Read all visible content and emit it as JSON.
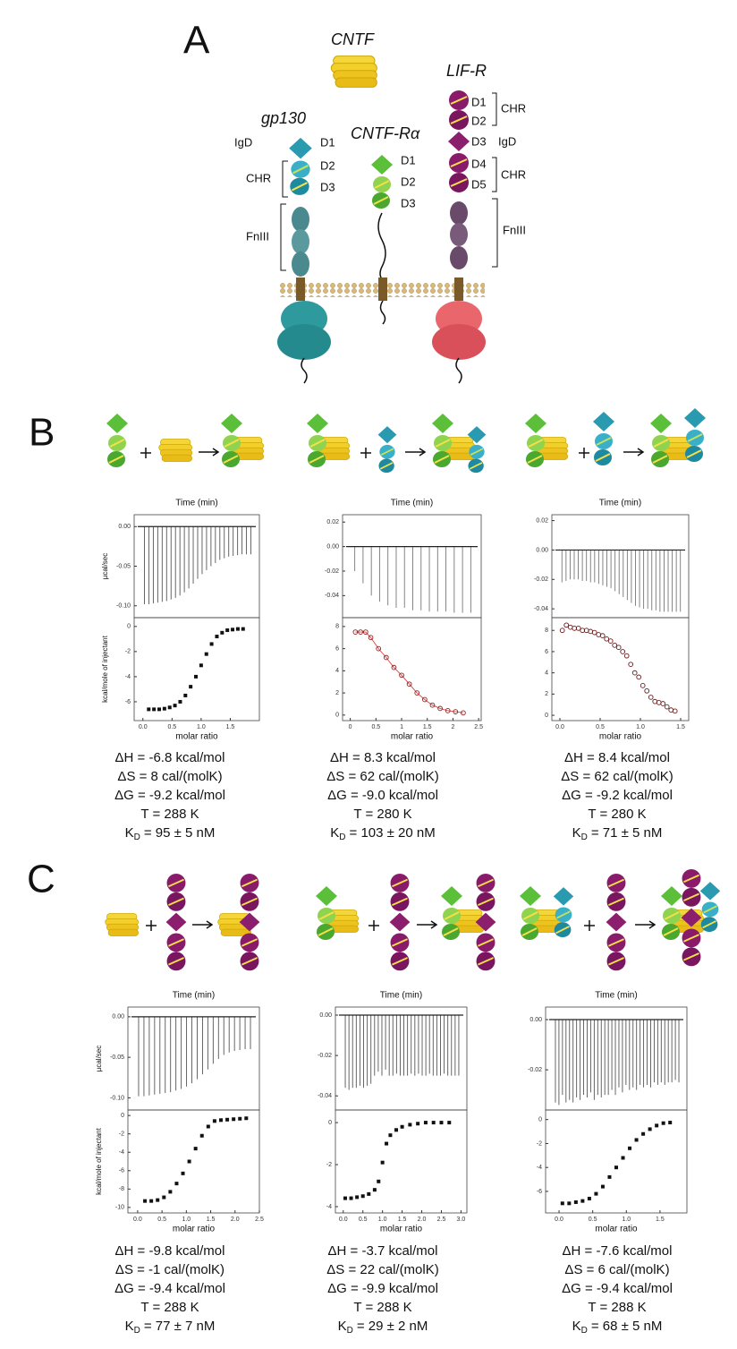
{
  "panel_a": {
    "label": "A",
    "cntf": "CNTF",
    "gp130": {
      "name": "gp130",
      "igd": "IgD",
      "d1": "D1",
      "d2": "D2",
      "d3": "D3",
      "chr": "CHR",
      "fn3": "FnIII"
    },
    "ralpha": {
      "name": "CNTF-Rα",
      "d1": "D1",
      "d2": "D2",
      "d3": "D3"
    },
    "lifr": {
      "name": "LIF-R",
      "d1": "D1",
      "d2": "D2",
      "chr1": "CHR",
      "d3": "D3",
      "igd": "IgD",
      "d4": "D4",
      "d5": "D5",
      "chr2": "CHR",
      "fn3": "FnIII"
    }
  },
  "panel_b": {
    "label": "B",
    "experiments": [
      {
        "raw": {
          "type": "spike",
          "title": "Time (min)",
          "ylabel": "µcal/sec",
          "color": "#555555",
          "ylim": [
            -0.115,
            0.015
          ],
          "yticks": [
            {
              "value": 0,
              "label": "0.00"
            },
            -0.05,
            {
              "value": -0.1,
              "label": "-0.10"
            }
          ],
          "values": [
            -0.098,
            -0.098,
            -0.097,
            -0.096,
            -0.095,
            -0.094,
            -0.092,
            -0.09,
            -0.087,
            -0.083,
            -0.078,
            -0.072,
            -0.066,
            -0.06,
            -0.055,
            -0.05,
            -0.046,
            -0.042,
            -0.04,
            -0.038,
            -0.037,
            -0.036,
            -0.035,
            -0.035,
            -0.035
          ]
        },
        "isotherm": {
          "type": "scatter",
          "xlabel": "molar ratio",
          "ylabel": "kcal/mole of injectant",
          "marker": "square",
          "color": "#111111",
          "xlim": [
            -0.15,
            2.0
          ],
          "xticks": [
            {
              "value": 0,
              "label": "0.0"
            },
            0.5,
            {
              "value": 1,
              "label": "1.0"
            },
            1.5
          ],
          "ylim": [
            -7.5,
            0.7
          ],
          "yticks": [
            0,
            -2,
            -4,
            -6
          ],
          "x": [
            0.1,
            0.19,
            0.28,
            0.37,
            0.46,
            0.55,
            0.64,
            0.73,
            0.82,
            0.91,
            1.0,
            1.09,
            1.18,
            1.27,
            1.36,
            1.45,
            1.54,
            1.63,
            1.72
          ],
          "values": [
            -6.6,
            -6.6,
            -6.6,
            -6.55,
            -6.45,
            -6.3,
            -6.0,
            -5.5,
            -4.8,
            -4.0,
            -3.1,
            -2.2,
            -1.4,
            -0.8,
            -0.5,
            -0.3,
            -0.25,
            -0.2,
            -0.2
          ]
        },
        "params": [
          "ΔH = -6.8 kcal/mol",
          "ΔS = 8 cal/(molK)",
          "ΔG = -9.2 kcal/mol",
          "T   = 288 K"
        ],
        "kd": {
          "symbol": "K",
          "subscript": "D",
          "value": "= 95 ± 5 nM"
        }
      },
      {
        "raw": {
          "type": "spike",
          "title": "Time (min)",
          "color": "#777777",
          "ylim": [
            -0.058,
            0.026
          ],
          "yticks": [
            0.02,
            {
              "value": 0,
              "label": "0.00"
            },
            -0.02,
            -0.04
          ],
          "values": [
            -0.02,
            -0.03,
            -0.04,
            -0.045,
            -0.048,
            -0.05,
            -0.05,
            -0.052,
            -0.052,
            -0.053,
            -0.053,
            -0.053,
            -0.054,
            -0.054,
            -0.054
          ]
        },
        "isotherm": {
          "type": "scatter",
          "xlabel": "molar ratio",
          "marker": "circle",
          "color": "#8a2020",
          "line": "#e04040",
          "xlim": [
            -0.15,
            2.55
          ],
          "xticks": [
            0,
            0.5,
            1,
            1.5,
            2,
            2.5
          ],
          "ylim": [
            -0.5,
            8.8
          ],
          "yticks": [
            0,
            2,
            4,
            6,
            8
          ],
          "x": [
            0.1,
            0.2,
            0.3,
            0.4,
            0.55,
            0.7,
            0.85,
            1.0,
            1.15,
            1.3,
            1.45,
            1.6,
            1.75,
            1.9,
            2.05,
            2.2
          ],
          "values": [
            7.5,
            7.5,
            7.5,
            7.0,
            6.0,
            5.2,
            4.3,
            3.6,
            2.8,
            2.0,
            1.4,
            0.9,
            0.6,
            0.4,
            0.3,
            0.2
          ]
        },
        "params": [
          "ΔH = 8.3 kcal/mol",
          "ΔS = 62 cal/(molK)",
          "ΔG = -9.0 kcal/mol",
          "T = 280 K"
        ],
        "kd": {
          "symbol": "K",
          "subscript": "D",
          "value": "= 103 ± 20 nM"
        }
      },
      {
        "raw": {
          "type": "spike",
          "title": "Time (min)",
          "color": "#777777",
          "ylim": [
            -0.046,
            0.024
          ],
          "yticks": [
            0.02,
            {
              "value": 0,
              "label": "0.00"
            },
            -0.02,
            -0.04
          ],
          "values": [
            -0.022,
            -0.021,
            -0.02,
            -0.02,
            -0.02,
            -0.021,
            -0.021,
            -0.022,
            -0.022,
            -0.023,
            -0.024,
            -0.025,
            -0.026,
            -0.028,
            -0.03,
            -0.032,
            -0.034,
            -0.036,
            -0.038,
            -0.039,
            -0.04,
            -0.04,
            -0.041,
            -0.041,
            -0.042,
            -0.042,
            -0.042,
            -0.042,
            -0.042,
            -0.042
          ]
        },
        "isotherm": {
          "type": "scatter",
          "xlabel": "molar ratio",
          "marker": "circle",
          "color": "#6a1a1a",
          "xlim": [
            -0.1,
            1.6
          ],
          "xticks": [
            {
              "value": 0,
              "label": "0.0"
            },
            0.5,
            {
              "value": 1,
              "label": "1.0"
            },
            1.5
          ],
          "ylim": [
            -0.5,
            9.2
          ],
          "yticks": [
            0,
            2,
            4,
            6,
            8
          ],
          "x": [
            0.03,
            0.08,
            0.13,
            0.18,
            0.23,
            0.28,
            0.33,
            0.38,
            0.43,
            0.48,
            0.53,
            0.58,
            0.63,
            0.68,
            0.73,
            0.78,
            0.83,
            0.88,
            0.93,
            0.98,
            1.03,
            1.08,
            1.13,
            1.18,
            1.23,
            1.28,
            1.33,
            1.38,
            1.43
          ],
          "values": [
            8.0,
            8.5,
            8.3,
            8.2,
            8.2,
            8.0,
            8.0,
            7.9,
            7.8,
            7.6,
            7.5,
            7.2,
            7.0,
            6.6,
            6.4,
            6.0,
            5.6,
            4.8,
            4.0,
            3.6,
            2.8,
            2.3,
            1.7,
            1.3,
            1.2,
            1.1,
            0.8,
            0.5,
            0.4
          ]
        },
        "params": [
          "ΔH = 8.4 kcal/mol",
          "ΔS = 62 cal/(molK)",
          "ΔG = -9.2 kcal/mol",
          "T   = 280 K"
        ],
        "kd": {
          "symbol": "K",
          "subscript": "D",
          "value": "= 71 ± 5 nM"
        }
      }
    ]
  },
  "panel_c": {
    "label": "C",
    "experiments": [
      {
        "raw": {
          "type": "spike",
          "title": "Time (min)",
          "ylabel": "µcal/sec",
          "color": "#555555",
          "ylim": [
            -0.115,
            0.012
          ],
          "yticks": [
            {
              "value": 0,
              "label": "0.00"
            },
            -0.05,
            {
              "value": -0.1,
              "label": "-0.10"
            }
          ],
          "values": [
            -0.098,
            -0.098,
            -0.097,
            -0.096,
            -0.095,
            -0.094,
            -0.093,
            -0.091,
            -0.089,
            -0.086,
            -0.082,
            -0.077,
            -0.071,
            -0.065,
            -0.058,
            -0.052,
            -0.047,
            -0.044,
            -0.042,
            -0.041,
            -0.04,
            -0.04
          ]
        },
        "isotherm": {
          "type": "scatter",
          "xlabel": "molar ratio",
          "ylabel": "kcal/mole of injectant",
          "marker": "square",
          "color": "#111111",
          "xlim": [
            -0.2,
            2.5
          ],
          "xticks": [
            {
              "value": 0,
              "label": "0.0"
            },
            0.5,
            {
              "value": 1,
              "label": "1.0"
            },
            1.5,
            {
              "value": 2,
              "label": "2.0"
            },
            2.5
          ],
          "ylim": [
            -10.6,
            0.6
          ],
          "yticks": [
            0,
            -2,
            -4,
            -6,
            -8,
            -10
          ],
          "x": [
            0.15,
            0.28,
            0.41,
            0.54,
            0.67,
            0.8,
            0.93,
            1.06,
            1.19,
            1.32,
            1.45,
            1.58,
            1.71,
            1.84,
            1.97,
            2.1,
            2.23
          ],
          "values": [
            -9.3,
            -9.3,
            -9.2,
            -8.9,
            -8.3,
            -7.4,
            -6.3,
            -5.0,
            -3.6,
            -2.2,
            -1.2,
            -0.6,
            -0.5,
            -0.45,
            -0.4,
            -0.35,
            -0.3
          ]
        },
        "params": [
          "ΔH = -9.8 kcal/mol",
          "ΔS = -1 cal/(molK)",
          "ΔG = -9.4 kcal/mol",
          "T   = 288 K"
        ],
        "kd": {
          "symbol": "K",
          "subscript": "D",
          "value": "= 77 ± 7 nM"
        }
      },
      {
        "raw": {
          "type": "spike",
          "title": "Time (min)",
          "color": "#555555",
          "ylim": [
            -0.047,
            0.004
          ],
          "yticks": [
            {
              "value": 0,
              "label": "0.00"
            },
            -0.02,
            -0.04
          ],
          "values": [
            -0.036,
            -0.037,
            -0.036,
            -0.036,
            -0.035,
            -0.036,
            -0.035,
            -0.034,
            -0.03,
            -0.028,
            -0.03,
            -0.027,
            -0.03,
            -0.03,
            -0.029,
            -0.03,
            -0.03,
            -0.03,
            -0.029,
            -0.03,
            -0.029,
            -0.03,
            -0.03,
            -0.029,
            -0.03,
            -0.03,
            -0.03,
            -0.029,
            -0.03,
            -0.03,
            -0.03,
            -0.03
          ]
        },
        "isotherm": {
          "type": "scatter",
          "xlabel": "molar ratio",
          "marker": "square",
          "color": "#111111",
          "xlim": [
            -0.2,
            3.15
          ],
          "xticks": [
            {
              "value": 0,
              "label": "0.0"
            },
            0.5,
            {
              "value": 1,
              "label": "1.0"
            },
            1.5,
            {
              "value": 2,
              "label": "2.0"
            },
            2.5,
            {
              "value": 3,
              "label": "3.0"
            }
          ],
          "ylim": [
            -4.3,
            0.6
          ],
          "yticks": [
            0,
            -2,
            -4
          ],
          "x": [
            0.05,
            0.2,
            0.35,
            0.5,
            0.65,
            0.8,
            0.9,
            1.0,
            1.1,
            1.2,
            1.35,
            1.5,
            1.7,
            1.9,
            2.1,
            2.3,
            2.5,
            2.7
          ],
          "values": [
            -3.6,
            -3.6,
            -3.55,
            -3.5,
            -3.4,
            -3.2,
            -2.8,
            -1.9,
            -1.0,
            -0.6,
            -0.35,
            -0.2,
            -0.1,
            -0.05,
            0,
            0,
            0,
            0
          ]
        },
        "params": [
          "ΔH = -3.7 kcal/mol",
          "ΔS = 22 cal/(molK)",
          "ΔG = -9.9 kcal/mol",
          "T   = 288 K"
        ],
        "kd": {
          "symbol": "K",
          "subscript": "D",
          "value": "= 29 ± 2 nM"
        }
      },
      {
        "raw": {
          "type": "spike",
          "title": "Time (min)",
          "color": "#555555",
          "ylim": [
            -0.036,
            0.005
          ],
          "yticks": [
            {
              "value": 0,
              "label": "0.00"
            },
            -0.02
          ],
          "values": [
            -0.033,
            -0.034,
            -0.03,
            -0.033,
            -0.032,
            -0.033,
            -0.031,
            -0.032,
            -0.03,
            -0.031,
            -0.029,
            -0.032,
            -0.03,
            -0.031,
            -0.03,
            -0.03,
            -0.028,
            -0.03,
            -0.027,
            -0.029,
            -0.026,
            -0.028,
            -0.027,
            -0.028,
            -0.026,
            -0.027,
            -0.026,
            -0.027,
            -0.025,
            -0.026,
            -0.025,
            -0.026,
            -0.025,
            -0.025,
            -0.024,
            -0.025
          ]
        },
        "isotherm": {
          "type": "scatter",
          "xlabel": "molar ratio",
          "marker": "square",
          "color": "#111111",
          "xlim": [
            -0.2,
            1.9
          ],
          "xticks": [
            {
              "value": 0,
              "label": "0.0"
            },
            0.5,
            {
              "value": 1,
              "label": "1.0"
            },
            1.5
          ],
          "ylim": [
            -7.8,
            0.8
          ],
          "yticks": [
            0,
            -2,
            -4,
            -6
          ],
          "x": [
            0.05,
            0.15,
            0.25,
            0.35,
            0.45,
            0.55,
            0.65,
            0.75,
            0.85,
            0.95,
            1.05,
            1.15,
            1.25,
            1.35,
            1.45,
            1.55,
            1.65
          ],
          "values": [
            -7.0,
            -7.0,
            -6.9,
            -6.8,
            -6.6,
            -6.2,
            -5.6,
            -4.8,
            -4.0,
            -3.2,
            -2.4,
            -1.7,
            -1.2,
            -0.8,
            -0.5,
            -0.3,
            -0.25
          ]
        },
        "params": [
          "ΔH = -7.6 kcal/mol",
          "ΔS = 6 cal/(molK)",
          "ΔG = -9.4 kcal/mol",
          "T   = 288 K"
        ],
        "kd": {
          "symbol": "K",
          "subscript": "D",
          "value": "= 68 ± 5 nM"
        }
      }
    ]
  }
}
